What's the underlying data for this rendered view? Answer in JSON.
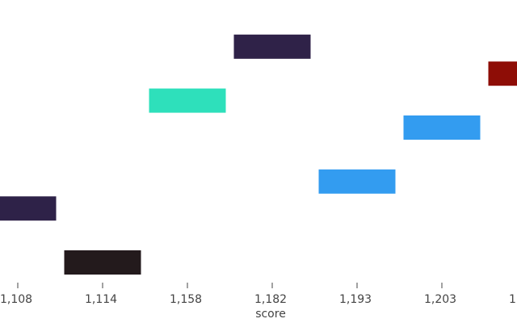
{
  "chart_data": {
    "type": "bar",
    "x_label": "score",
    "categories": [
      "1,108",
      "1,114",
      "1,158",
      "1,182",
      "1,193",
      "1,203",
      "1"
    ],
    "values": [
      2,
      0,
      6,
      8,
      3,
      5,
      7
    ],
    "colors": [
      "#2e2248",
      "#231a1c",
      "#2ee0bb",
      "#2f2248",
      "#339cf0",
      "#339cf0",
      "#8e0d06"
    ]
  }
}
